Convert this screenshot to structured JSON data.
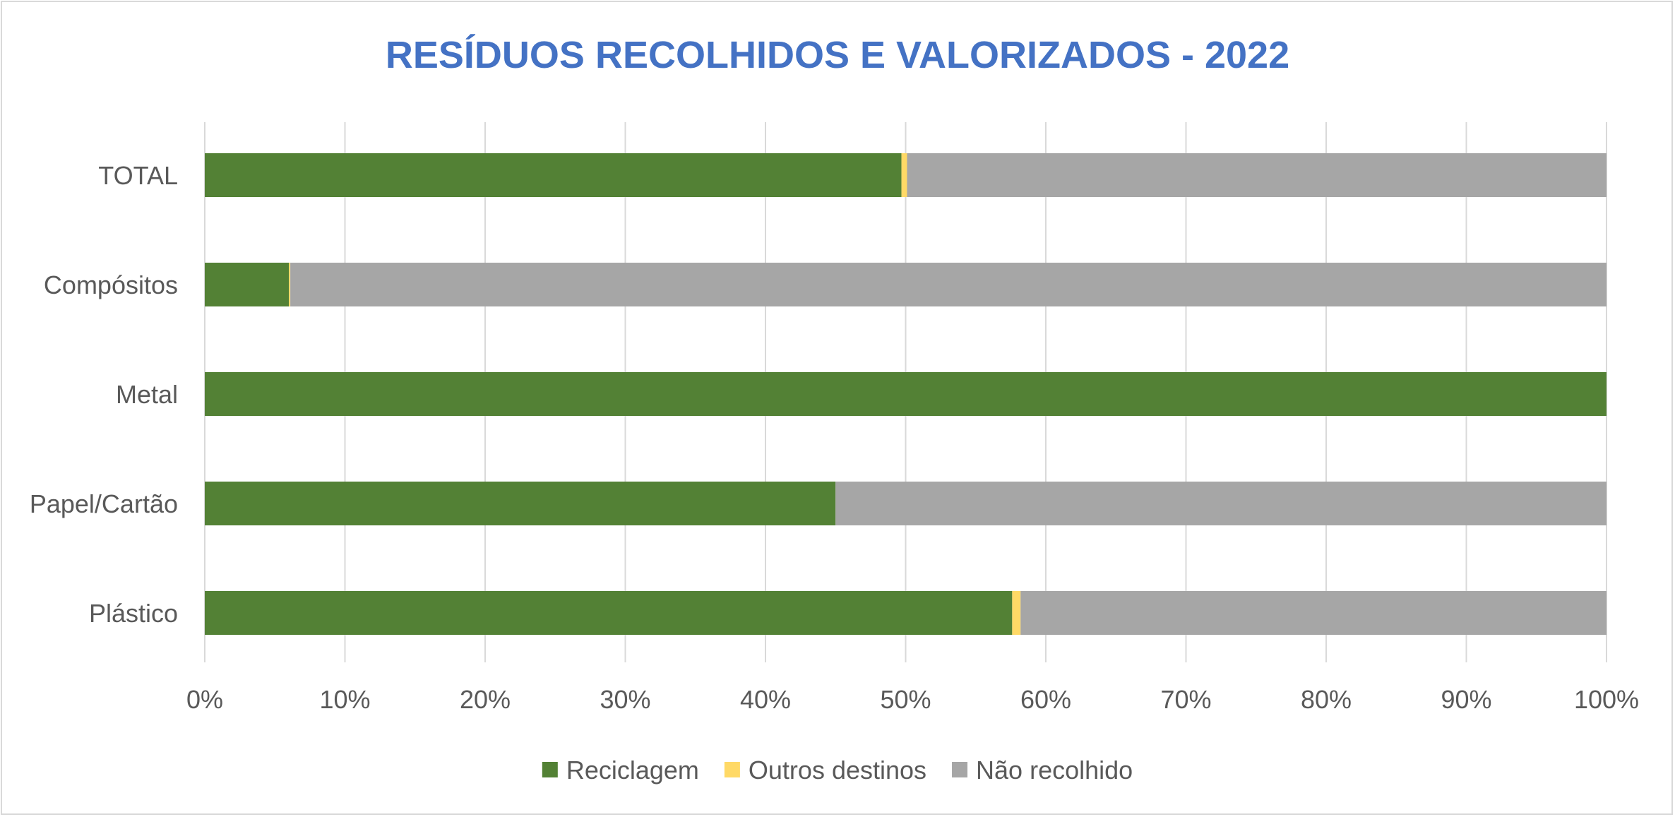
{
  "chart_data": {
    "type": "bar",
    "orientation": "horizontal",
    "stacked": "percent",
    "title": "RESÍDUOS RECOLHIDOS E VALORIZADOS - 2022",
    "categories": [
      "TOTAL",
      "Compósitos",
      "Metal",
      "Papel/Cartão",
      "Plástico"
    ],
    "series": [
      {
        "name": "Reciclagem",
        "color": "#538135",
        "values": [
          49.7,
          6.0,
          100.0,
          45.0,
          57.6
        ]
      },
      {
        "name": "Outros destinos",
        "color": "#ffd966",
        "values": [
          0.4,
          0.1,
          0.0,
          0.0,
          0.6
        ]
      },
      {
        "name": "Não recolhido",
        "color": "#a6a6a6",
        "values": [
          49.9,
          93.9,
          0.0,
          55.0,
          41.8
        ]
      }
    ],
    "x_ticks": [
      "0%",
      "10%",
      "20%",
      "30%",
      "40%",
      "50%",
      "60%",
      "70%",
      "80%",
      "90%",
      "100%"
    ],
    "xlim": [
      0,
      100
    ],
    "grid": true,
    "legend_position": "bottom"
  }
}
